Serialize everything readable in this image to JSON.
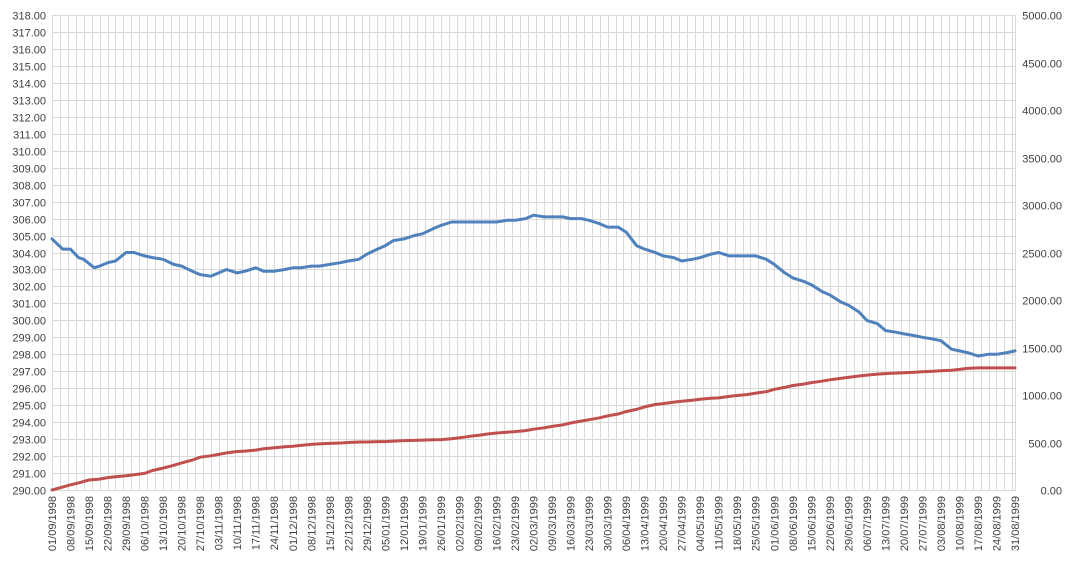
{
  "chart_data": {
    "type": "line",
    "x_start": "01/09/1998",
    "x_end": "31/08/1999",
    "x_tick_labels": [
      "01/09/1998",
      "08/09/1998",
      "15/09/1998",
      "22/09/1998",
      "29/09/1998",
      "06/10/1998",
      "13/10/1998",
      "20/10/1998",
      "27/10/1998",
      "03/11/1998",
      "10/11/1998",
      "17/11/1998",
      "24/11/1998",
      "01/12/1998",
      "08/12/1998",
      "15/12/1998",
      "22/12/1998",
      "29/12/1998",
      "05/01/1999",
      "12/01/1999",
      "19/01/1999",
      "26/01/1999",
      "02/02/1999",
      "09/02/1999",
      "16/02/1999",
      "23/02/1999",
      "02/03/1999",
      "09/03/1999",
      "16/03/1999",
      "23/03/1999",
      "30/03/1999",
      "06/04/1999",
      "13/04/1999",
      "20/04/1999",
      "27/04/1999",
      "04/05/1999",
      "11/05/1999",
      "18/05/1999",
      "25/05/1999",
      "01/06/1999",
      "08/06/1999",
      "15/06/1999",
      "22/06/1999",
      "29/06/1999",
      "06/07/1999",
      "13/07/1999",
      "20/07/1999",
      "27/07/1999",
      "03/08/1999",
      "10/08/1999",
      "17/08/1999",
      "24/08/1999",
      "31/08/1999"
    ],
    "y_left": {
      "range": [
        290.0,
        318.0
      ],
      "tick_labels": [
        "290.00",
        "291.00",
        "292.00",
        "293.00",
        "294.00",
        "295.00",
        "296.00",
        "297.00",
        "298.00",
        "299.00",
        "300.00",
        "301.00",
        "302.00",
        "303.00",
        "304.00",
        "305.00",
        "306.00",
        "307.00",
        "308.00",
        "309.00",
        "310.00",
        "311.00",
        "312.00",
        "313.00",
        "314.00",
        "315.00",
        "316.00",
        "317.00",
        "318.00"
      ]
    },
    "y_right": {
      "range": [
        0,
        5000
      ],
      "tick_labels": [
        "0.00",
        "500.00",
        "1000.00",
        "1500.00",
        "2000.00",
        "2500.00",
        "3000.00",
        "3500.00",
        "4000.00",
        "4500.00",
        "5000.00"
      ]
    },
    "grid": true,
    "legend": "none",
    "series": [
      {
        "axis": "left",
        "color": "#4f81bd",
        "points": [
          [
            "01/09/1998",
            304.8
          ],
          [
            "05/09/1998",
            304.2
          ],
          [
            "08/09/1998",
            304.2
          ],
          [
            "11/09/1998",
            303.7
          ],
          [
            "13/09/1998",
            303.6
          ],
          [
            "17/09/1998",
            303.1
          ],
          [
            "19/09/1998",
            303.2
          ],
          [
            "22/09/1998",
            303.4
          ],
          [
            "25/09/1998",
            303.5
          ],
          [
            "29/09/1998",
            304.0
          ],
          [
            "02/10/1998",
            304.0
          ],
          [
            "06/10/1998",
            303.8
          ],
          [
            "09/10/1998",
            303.7
          ],
          [
            "13/10/1998",
            303.6
          ],
          [
            "17/10/1998",
            303.3
          ],
          [
            "20/10/1998",
            303.2
          ],
          [
            "24/10/1998",
            302.9
          ],
          [
            "27/10/1998",
            302.7
          ],
          [
            "31/10/1998",
            302.6
          ],
          [
            "03/11/1998",
            302.8
          ],
          [
            "06/11/1998",
            303.0
          ],
          [
            "10/11/1998",
            302.8
          ],
          [
            "13/11/1998",
            302.9
          ],
          [
            "17/11/1998",
            303.1
          ],
          [
            "20/11/1998",
            302.9
          ],
          [
            "24/11/1998",
            302.9
          ],
          [
            "28/11/1998",
            303.0
          ],
          [
            "01/12/1998",
            303.1
          ],
          [
            "04/12/1998",
            303.1
          ],
          [
            "08/12/1998",
            303.2
          ],
          [
            "11/12/1998",
            303.2
          ],
          [
            "15/12/1998",
            303.3
          ],
          [
            "19/12/1998",
            303.4
          ],
          [
            "22/12/1998",
            303.5
          ],
          [
            "26/12/1998",
            303.6
          ],
          [
            "29/12/1998",
            303.9
          ],
          [
            "02/01/1999",
            304.2
          ],
          [
            "05/01/1999",
            304.4
          ],
          [
            "08/01/1999",
            304.7
          ],
          [
            "12/01/1999",
            304.8
          ],
          [
            "16/01/1999",
            305.0
          ],
          [
            "19/01/1999",
            305.1
          ],
          [
            "23/01/1999",
            305.4
          ],
          [
            "26/01/1999",
            305.6
          ],
          [
            "30/01/1999",
            305.8
          ],
          [
            "02/02/1999",
            305.8
          ],
          [
            "06/02/1999",
            305.8
          ],
          [
            "09/02/1999",
            305.8
          ],
          [
            "13/02/1999",
            305.8
          ],
          [
            "16/02/1999",
            305.8
          ],
          [
            "20/02/1999",
            305.9
          ],
          [
            "23/02/1999",
            305.9
          ],
          [
            "27/02/1999",
            306.0
          ],
          [
            "02/03/1999",
            306.2
          ],
          [
            "06/03/1999",
            306.1
          ],
          [
            "09/03/1999",
            306.1
          ],
          [
            "13/03/1999",
            306.1
          ],
          [
            "16/03/1999",
            306.0
          ],
          [
            "20/03/1999",
            306.0
          ],
          [
            "23/03/1999",
            305.9
          ],
          [
            "27/03/1999",
            305.7
          ],
          [
            "30/03/1999",
            305.5
          ],
          [
            "03/04/1999",
            305.5
          ],
          [
            "06/04/1999",
            305.2
          ],
          [
            "10/04/1999",
            304.4
          ],
          [
            "13/04/1999",
            304.2
          ],
          [
            "17/04/1999",
            304.0
          ],
          [
            "20/04/1999",
            303.8
          ],
          [
            "24/04/1999",
            303.7
          ],
          [
            "27/04/1999",
            303.5
          ],
          [
            "01/05/1999",
            303.6
          ],
          [
            "04/05/1999",
            303.7
          ],
          [
            "08/05/1999",
            303.9
          ],
          [
            "11/05/1999",
            304.0
          ],
          [
            "15/05/1999",
            303.8
          ],
          [
            "18/05/1999",
            303.8
          ],
          [
            "22/05/1999",
            303.8
          ],
          [
            "25/05/1999",
            303.8
          ],
          [
            "29/05/1999",
            303.6
          ],
          [
            "01/06/1999",
            303.3
          ],
          [
            "05/06/1999",
            302.8
          ],
          [
            "08/06/1999",
            302.5
          ],
          [
            "12/06/1999",
            302.3
          ],
          [
            "15/06/1999",
            302.1
          ],
          [
            "19/06/1999",
            301.7
          ],
          [
            "22/06/1999",
            301.5
          ],
          [
            "26/06/1999",
            301.1
          ],
          [
            "29/06/1999",
            300.9
          ],
          [
            "03/07/1999",
            300.5
          ],
          [
            "06/07/1999",
            300.0
          ],
          [
            "10/07/1999",
            299.8
          ],
          [
            "13/07/1999",
            299.4
          ],
          [
            "17/07/1999",
            299.3
          ],
          [
            "20/07/1999",
            299.2
          ],
          [
            "24/07/1999",
            299.1
          ],
          [
            "27/07/1999",
            299.0
          ],
          [
            "31/07/1999",
            298.9
          ],
          [
            "03/08/1999",
            298.8
          ],
          [
            "07/08/1999",
            298.3
          ],
          [
            "10/08/1999",
            298.2
          ],
          [
            "13/08/1999",
            298.1
          ],
          [
            "17/08/1999",
            297.9
          ],
          [
            "21/08/1999",
            298.0
          ],
          [
            "24/08/1999",
            298.0
          ],
          [
            "28/08/1999",
            298.1
          ],
          [
            "31/08/1999",
            298.2
          ]
        ]
      },
      {
        "axis": "right",
        "color": "#c0504d",
        "points": [
          [
            "01/09/1998",
            0
          ],
          [
            "05/09/1998",
            30
          ],
          [
            "08/09/1998",
            55
          ],
          [
            "11/09/1998",
            75
          ],
          [
            "15/09/1998",
            105
          ],
          [
            "19/09/1998",
            115
          ],
          [
            "22/09/1998",
            130
          ],
          [
            "25/09/1998",
            140
          ],
          [
            "29/09/1998",
            150
          ],
          [
            "02/10/1998",
            160
          ],
          [
            "06/10/1998",
            175
          ],
          [
            "09/10/1998",
            205
          ],
          [
            "13/10/1998",
            230
          ],
          [
            "17/10/1998",
            260
          ],
          [
            "20/10/1998",
            285
          ],
          [
            "24/10/1998",
            315
          ],
          [
            "27/10/1998",
            345
          ],
          [
            "31/10/1998",
            360
          ],
          [
            "03/11/1998",
            375
          ],
          [
            "06/11/1998",
            390
          ],
          [
            "10/11/1998",
            405
          ],
          [
            "13/11/1998",
            410
          ],
          [
            "17/11/1998",
            420
          ],
          [
            "20/11/1998",
            435
          ],
          [
            "24/11/1998",
            445
          ],
          [
            "28/11/1998",
            455
          ],
          [
            "01/12/1998",
            460
          ],
          [
            "04/12/1998",
            470
          ],
          [
            "08/12/1998",
            480
          ],
          [
            "11/12/1998",
            485
          ],
          [
            "15/12/1998",
            490
          ],
          [
            "19/12/1998",
            495
          ],
          [
            "22/12/1998",
            500
          ],
          [
            "26/12/1998",
            505
          ],
          [
            "29/12/1998",
            505
          ],
          [
            "02/01/1999",
            510
          ],
          [
            "05/01/1999",
            510
          ],
          [
            "08/01/1999",
            515
          ],
          [
            "12/01/1999",
            520
          ],
          [
            "16/01/1999",
            522
          ],
          [
            "19/01/1999",
            525
          ],
          [
            "23/01/1999",
            528
          ],
          [
            "26/01/1999",
            530
          ],
          [
            "30/01/1999",
            540
          ],
          [
            "02/02/1999",
            550
          ],
          [
            "06/02/1999",
            565
          ],
          [
            "09/02/1999",
            575
          ],
          [
            "13/02/1999",
            590
          ],
          [
            "16/02/1999",
            600
          ],
          [
            "20/02/1999",
            608
          ],
          [
            "23/02/1999",
            615
          ],
          [
            "27/02/1999",
            625
          ],
          [
            "02/03/1999",
            640
          ],
          [
            "06/03/1999",
            655
          ],
          [
            "09/03/1999",
            670
          ],
          [
            "13/03/1999",
            685
          ],
          [
            "16/03/1999",
            705
          ],
          [
            "20/03/1999",
            725
          ],
          [
            "23/03/1999",
            740
          ],
          [
            "27/03/1999",
            760
          ],
          [
            "30/03/1999",
            780
          ],
          [
            "03/04/1999",
            800
          ],
          [
            "06/04/1999",
            825
          ],
          [
            "10/04/1999",
            850
          ],
          [
            "13/04/1999",
            875
          ],
          [
            "17/04/1999",
            900
          ],
          [
            "20/04/1999",
            910
          ],
          [
            "24/04/1999",
            925
          ],
          [
            "27/04/1999",
            935
          ],
          [
            "01/05/1999",
            945
          ],
          [
            "04/05/1999",
            955
          ],
          [
            "08/05/1999",
            965
          ],
          [
            "11/05/1999",
            970
          ],
          [
            "15/05/1999",
            985
          ],
          [
            "18/05/1999",
            995
          ],
          [
            "22/05/1999",
            1005
          ],
          [
            "25/05/1999",
            1020
          ],
          [
            "29/05/1999",
            1035
          ],
          [
            "01/06/1999",
            1060
          ],
          [
            "05/06/1999",
            1080
          ],
          [
            "08/06/1999",
            1100
          ],
          [
            "12/06/1999",
            1115
          ],
          [
            "15/06/1999",
            1130
          ],
          [
            "19/06/1999",
            1145
          ],
          [
            "22/06/1999",
            1160
          ],
          [
            "26/06/1999",
            1175
          ],
          [
            "29/06/1999",
            1185
          ],
          [
            "03/07/1999",
            1200
          ],
          [
            "06/07/1999",
            1210
          ],
          [
            "10/07/1999",
            1220
          ],
          [
            "13/07/1999",
            1225
          ],
          [
            "17/07/1999",
            1230
          ],
          [
            "20/07/1999",
            1235
          ],
          [
            "24/07/1999",
            1240
          ],
          [
            "27/07/1999",
            1245
          ],
          [
            "31/07/1999",
            1250
          ],
          [
            "03/08/1999",
            1255
          ],
          [
            "07/08/1999",
            1260
          ],
          [
            "10/08/1999",
            1270
          ],
          [
            "13/08/1999",
            1280
          ],
          [
            "17/08/1999",
            1285
          ],
          [
            "21/08/1999",
            1285
          ],
          [
            "24/08/1999",
            1285
          ],
          [
            "28/08/1999",
            1285
          ],
          [
            "31/08/1999",
            1285
          ]
        ]
      }
    ]
  }
}
